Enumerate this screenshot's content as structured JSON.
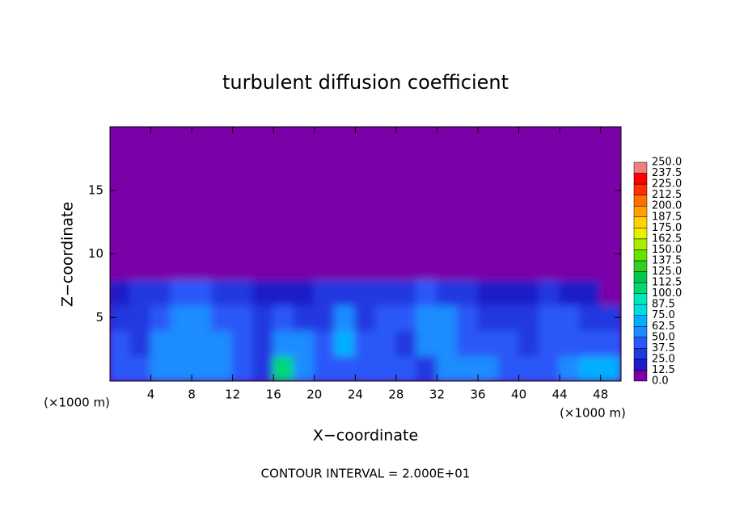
{
  "chart_data": {
    "type": "heatmap",
    "title": "turbulent diffusion coefficient",
    "x_label": "X−coordinate",
    "y_label": "Z−coordinate",
    "x_unit_left": "(×1000 m)",
    "x_unit_right": "(×1000 m)",
    "note": "CONTOUR INTERVAL = 2.000E+01",
    "x": [
      1,
      3,
      5,
      7,
      9,
      11,
      13,
      15,
      17,
      19,
      21,
      23,
      25,
      27,
      29,
      31,
      33,
      35,
      37,
      39,
      41,
      43,
      45,
      47,
      49
    ],
    "y": [
      1,
      3,
      5,
      7,
      9,
      11,
      13,
      15,
      17,
      19
    ],
    "values": [
      [
        45,
        40,
        50,
        50,
        55,
        55,
        45,
        30,
        100,
        50,
        40,
        45,
        40,
        45,
        40,
        35,
        55,
        55,
        50,
        45,
        45,
        45,
        60,
        70,
        65
      ],
      [
        40,
        35,
        55,
        55,
        60,
        55,
        45,
        35,
        60,
        50,
        45,
        65,
        40,
        45,
        35,
        60,
        60,
        45,
        40,
        40,
        35,
        40,
        45,
        45,
        40
      ],
      [
        35,
        30,
        45,
        50,
        55,
        45,
        40,
        30,
        45,
        35,
        35,
        60,
        35,
        40,
        40,
        55,
        50,
        40,
        35,
        30,
        35,
        40,
        40,
        35,
        30
      ],
      [
        15,
        25,
        35,
        40,
        45,
        35,
        35,
        20,
        15,
        20,
        30,
        35,
        25,
        30,
        35,
        40,
        30,
        25,
        20,
        15,
        20,
        25,
        15,
        15,
        10
      ],
      [
        0,
        0,
        0,
        5,
        5,
        0,
        0,
        0,
        0,
        0,
        0,
        0,
        0,
        0,
        5,
        5,
        0,
        0,
        0,
        0,
        0,
        0,
        0,
        0,
        0
      ],
      [
        0,
        0,
        0,
        0,
        0,
        0,
        0,
        0,
        0,
        0,
        0,
        0,
        0,
        0,
        0,
        0,
        0,
        0,
        0,
        0,
        0,
        0,
        0,
        0,
        0
      ],
      [
        0,
        0,
        0,
        0,
        0,
        0,
        0,
        0,
        0,
        0,
        0,
        0,
        0,
        0,
        0,
        0,
        0,
        0,
        0,
        0,
        0,
        0,
        0,
        0,
        0
      ],
      [
        0,
        0,
        0,
        0,
        0,
        0,
        0,
        0,
        0,
        0,
        0,
        0,
        0,
        0,
        0,
        0,
        0,
        0,
        0,
        0,
        0,
        0,
        0,
        0,
        0
      ],
      [
        0,
        0,
        0,
        0,
        0,
        0,
        0,
        0,
        0,
        0,
        0,
        0,
        0,
        0,
        0,
        0,
        0,
        0,
        0,
        0,
        0,
        0,
        0,
        0,
        0
      ],
      [
        0,
        0,
        0,
        0,
        0,
        0,
        0,
        0,
        0,
        0,
        0,
        0,
        0,
        0,
        0,
        0,
        0,
        0,
        0,
        0,
        0,
        0,
        0,
        0,
        0
      ]
    ],
    "xlim": [
      0,
      50
    ],
    "ylim": [
      0,
      20
    ],
    "xticks": [
      4,
      8,
      12,
      16,
      20,
      24,
      28,
      32,
      36,
      40,
      44,
      48
    ],
    "yticks": [
      5,
      10,
      15
    ],
    "colorbar": {
      "levels": [
        {
          "value": 0,
          "label": "0.0"
        },
        12.5,
        {
          "value": 25,
          "label": "25.0"
        },
        37.5,
        {
          "value": 50,
          "label": "50.0"
        },
        62.5,
        {
          "value": 75,
          "label": "75.0"
        },
        87.5,
        {
          "value": 100,
          "label": "100.0"
        },
        112.5,
        {
          "value": 125,
          "label": "125.0"
        },
        137.5,
        {
          "value": 150,
          "label": "150.0"
        },
        162.5,
        {
          "value": 175,
          "label": "175.0"
        },
        187.5,
        {
          "value": 200,
          "label": "200.0"
        },
        212.5,
        {
          "value": 225,
          "label": "225.0"
        },
        237.5,
        {
          "value": 250,
          "label": "250.0"
        }
      ],
      "colors": [
        "#7a00a8",
        "#1c1cc8",
        "#2038e0",
        "#2a58f8",
        "#1e8cff",
        "#00b0ff",
        "#00dce6",
        "#00e8b4",
        "#00d878",
        "#00c848",
        "#30d020",
        "#68e000",
        "#a8f000",
        "#e8f000",
        "#ffd200",
        "#ffa000",
        "#ff6e00",
        "#ff3000",
        "#ff0000",
        "#f08080"
      ]
    }
  }
}
